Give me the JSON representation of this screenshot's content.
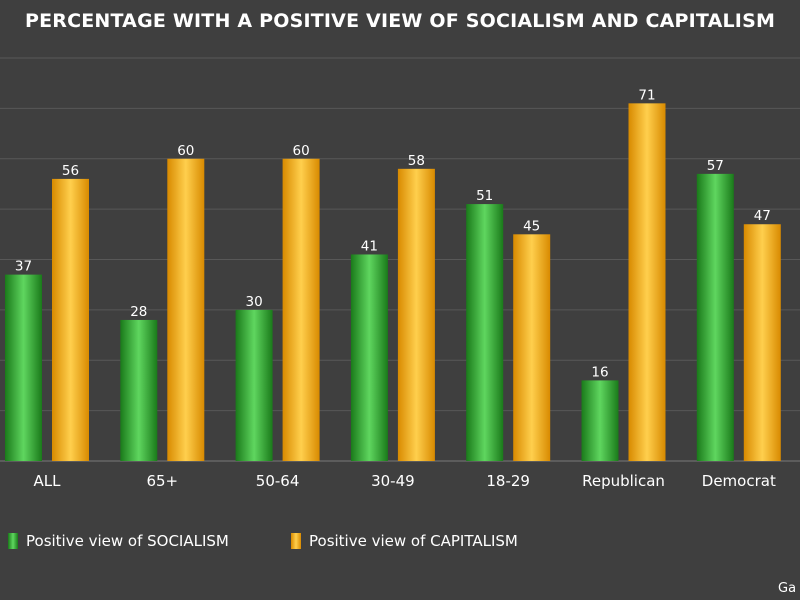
{
  "chart_data": {
    "type": "bar",
    "title": "PERCENTAGE WITH A POSITIVE VIEW OF SOCIALISM AND CAPITALISM",
    "categories": [
      "ALL",
      "65+",
      "50-64",
      "30-49",
      "18-29",
      "Republican",
      "Democrat"
    ],
    "series": [
      {
        "name": "Positive view of SOCIALISM",
        "values": [
          37,
          28,
          30,
          41,
          51,
          16,
          57
        ],
        "color": "#2e9a2e"
      },
      {
        "name": "Positive view of CAPITALISM",
        "values": [
          56,
          60,
          60,
          58,
          45,
          71,
          47
        ],
        "color": "#f3a400"
      }
    ],
    "ylim": [
      0,
      80
    ],
    "grid": true,
    "legend_position": "bottom-left",
    "source": "Ga"
  },
  "colors": {
    "background": "#3f3f3f",
    "grid": "#585858",
    "axis": "#7a7a7a",
    "text": "#ffffff"
  }
}
